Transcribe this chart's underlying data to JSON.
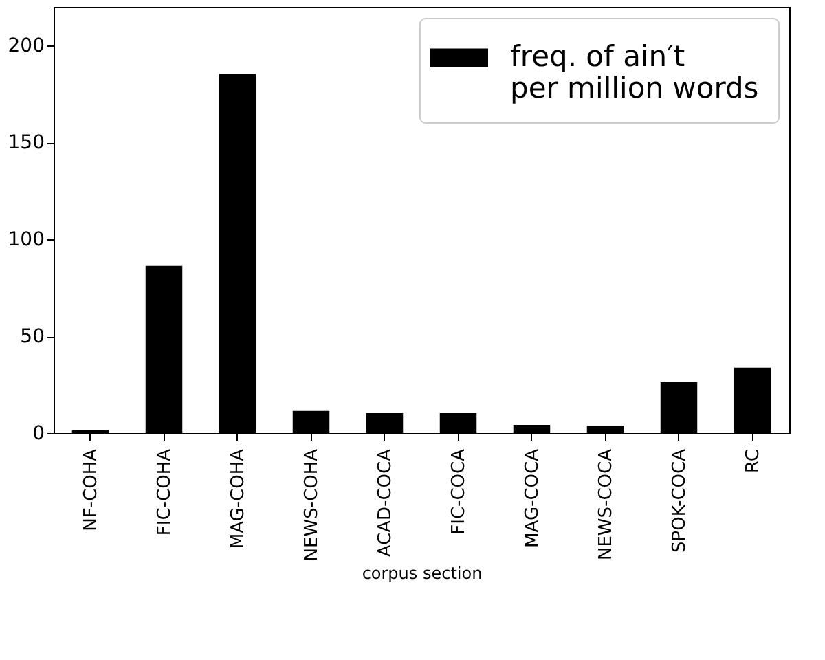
{
  "chart_data": {
    "type": "bar",
    "xlabel": "corpus section",
    "categories": [
      "NF-COHA",
      "FIC-COHA",
      "MAG-COHA",
      "NEWS-COHA",
      "ACAD-COCA",
      "FIC-COCA",
      "MAG-COCA",
      "NEWS-COCA",
      "SPOK-COCA",
      "RC"
    ],
    "series": [
      {
        "name": "freq. of ain′t\nper million words",
        "color": "#000000",
        "values": [
          1.6,
          86.3,
          185.4,
          11.4,
          10.3,
          10.3,
          4.3,
          3.8,
          26.3,
          33.8
        ]
      }
    ],
    "ylim": [
      0,
      220
    ],
    "yticks": [
      0,
      50,
      100,
      150,
      200
    ],
    "grid": false,
    "legend": "top right"
  }
}
